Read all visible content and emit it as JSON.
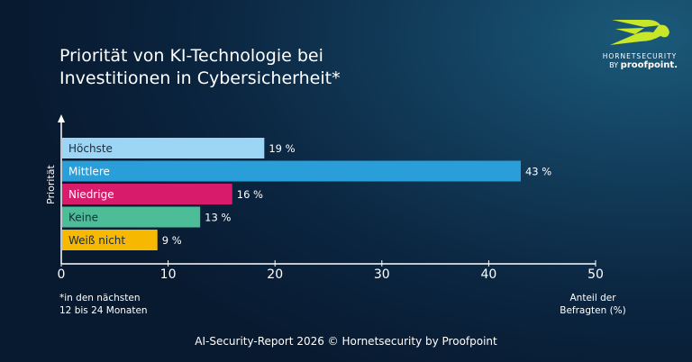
{
  "title_line1": "Priorität von KI-Technologie bei",
  "title_line2": "Investitionen in Cybersicherheit*",
  "logo": {
    "name": "HORNETSECURITY",
    "by": "BY",
    "brand": "proofpoint."
  },
  "footnote_line1": "*in den nächsten",
  "footnote_line2": "12 bis 24 Monaten",
  "source": "AI-Security-Report 2026 © Hornetsecurity by Proofpoint",
  "chart_data": {
    "type": "bar",
    "orientation": "horizontal",
    "title": "Priorität von KI-Technologie bei Investitionen in Cybersicherheit*",
    "ylabel": "Priorität",
    "xlabel": "Anteil der Befragten (%)",
    "xlabel_line1": "Anteil der",
    "xlabel_line2": "Befragten (%)",
    "categories": [
      "Höchste",
      "Mittlere",
      "Niedrige",
      "Keine",
      "Weiß nicht"
    ],
    "values": [
      19,
      43,
      16,
      13,
      9
    ],
    "data_labels": [
      "19 %",
      "43 %",
      "16 %",
      "13 %",
      "9 %"
    ],
    "colors": [
      "#9dd6f5",
      "#2a9ed8",
      "#d81b6a",
      "#4dbd98",
      "#f6b800"
    ],
    "label_colors": [
      "#1a2a3a",
      "#ffffff",
      "#ffffff",
      "#1a2a3a",
      "#1a2a3a"
    ],
    "xlim": [
      0,
      50
    ],
    "xticks": [
      0,
      10,
      20,
      30,
      40,
      50
    ],
    "grid": false
  }
}
